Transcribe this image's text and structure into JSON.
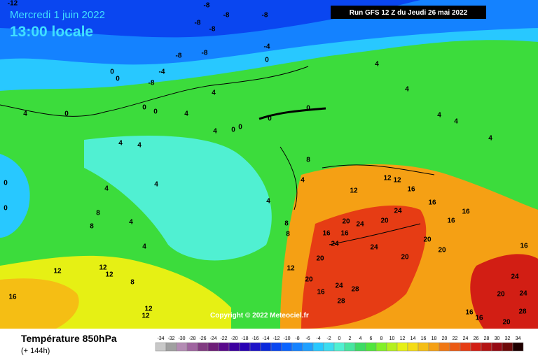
{
  "header": {
    "date": "Mercredi 1 juin 2022",
    "time": "13:00 locale",
    "run": "Run GFS 12 Z du Jeudi 26 mai 2022"
  },
  "footer": {
    "title": "Température 850hPa",
    "subtitle": "(+ 144h)",
    "copyright": "Copyright © 2022 Meteociel.fr"
  },
  "legend": {
    "ticks": [
      -34,
      -32,
      -30,
      -28,
      -26,
      -24,
      -22,
      -20,
      -18,
      -16,
      -14,
      -12,
      -10,
      -8,
      -6,
      -4,
      -2,
      0,
      2,
      4,
      6,
      8,
      10,
      12,
      14,
      16,
      18,
      20,
      22,
      24,
      26,
      28,
      30,
      32,
      34
    ],
    "colors": [
      "#c8c8c8",
      "#a0a0a0",
      "#b48cb4",
      "#a064a0",
      "#823c82",
      "#6e1e78",
      "#5a0a8c",
      "#3c00a0",
      "#2800b4",
      "#1e14c8",
      "#0a28dc",
      "#0a46f0",
      "#0a64ff",
      "#1482ff",
      "#1ea0ff",
      "#28c8ff",
      "#3cdcf0",
      "#50f0d2",
      "#46e6a0",
      "#3cdc64",
      "#50e63c",
      "#82f028",
      "#b4f01e",
      "#e6f014",
      "#f5dc14",
      "#f5be14",
      "#f5a014",
      "#f07814",
      "#eb5a14",
      "#e63c14",
      "#d21e14",
      "#b41414",
      "#960a14",
      "#6e0a0a",
      "#1e0000"
    ]
  },
  "contour_labels": [
    -12,
    -8,
    -8,
    -8,
    -8,
    -8,
    -8,
    -8,
    -4,
    0,
    -8,
    -4,
    0,
    0,
    4,
    4,
    4,
    4,
    0,
    0,
    0,
    4,
    4,
    0,
    0,
    0,
    0,
    4,
    4,
    4,
    4,
    4,
    8,
    4,
    4,
    4,
    4,
    0,
    0,
    8,
    8,
    4,
    4,
    8,
    8,
    12,
    12,
    12,
    16,
    16,
    24,
    20,
    16,
    16,
    20,
    24,
    24,
    24,
    20,
    20,
    20,
    24,
    28,
    28,
    16,
    12,
    12,
    12,
    12,
    12,
    12,
    16,
    8,
    16,
    16,
    16,
    20,
    20,
    24,
    20,
    24,
    28,
    16,
    16,
    20
  ]
}
